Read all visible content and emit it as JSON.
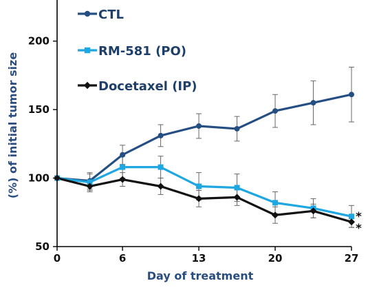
{
  "chart_data": {
    "type": "line",
    "xlabel": "Day of treatment",
    "ylabel": "(%) of initial tumor size",
    "x_ticks": [
      "0",
      "6",
      "13",
      "20",
      "27"
    ],
    "y_ticks": [
      "50",
      "100",
      "150",
      "200"
    ],
    "xlim": [
      0,
      27
    ],
    "ylim": [
      50,
      230
    ],
    "x": [
      0,
      3,
      6,
      9.5,
      13,
      16.5,
      20,
      23.5,
      27
    ],
    "series": [
      {
        "name": "CTL",
        "color": "#254f83",
        "marker": "circle",
        "values": [
          100,
          98,
          117,
          131,
          138,
          136,
          149,
          155,
          161
        ],
        "errors": [
          0,
          6,
          7,
          8,
          9,
          9,
          12,
          16,
          20
        ]
      },
      {
        "name": "RM-581 (PO)",
        "color": "#1ea7e1",
        "marker": "square",
        "values": [
          100,
          97,
          108,
          108,
          94,
          93,
          82,
          78,
          72
        ],
        "errors": [
          0,
          6,
          8,
          8,
          10,
          10,
          8,
          7,
          8
        ]
      },
      {
        "name": "Docetaxel (IP)",
        "color": "#111111",
        "marker": "diamond",
        "values": [
          100,
          94,
          99,
          94,
          85,
          86,
          73,
          76,
          68
        ],
        "errors": [
          0,
          4,
          5,
          6,
          6,
          6,
          6,
          5,
          4
        ]
      }
    ],
    "annotations": [
      "*",
      "*"
    ],
    "legend_position": "top-left",
    "grid": false
  }
}
